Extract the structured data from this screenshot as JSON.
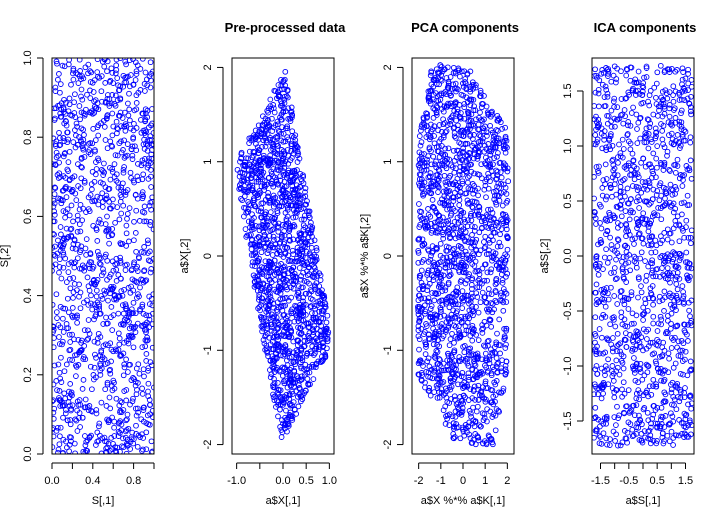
{
  "chart_data": [
    {
      "type": "scatter",
      "title": "",
      "xlabel": "S[,1]",
      "ylabel": "S[,2]",
      "xlim": [
        0,
        1
      ],
      "ylim": [
        0,
        1
      ],
      "xticks": [
        "0.0",
        "0.4",
        "0.8"
      ],
      "xtick_values": [
        0,
        0.2,
        0.4,
        0.6,
        0.8,
        1.0
      ],
      "xtick_labels_all": [
        "0.0",
        "",
        "0.4",
        "",
        "0.8",
        ""
      ],
      "yticks": [
        "0.0",
        "0.2",
        "0.4",
        "0.6",
        "0.8",
        "1.0"
      ],
      "ytick_values": [
        0,
        0.2,
        0.4,
        0.6,
        0.8,
        1.0
      ],
      "point_color": "#0000FF",
      "marker": "open-circle",
      "distribution": "uniform rectangle, x in [0,1], y in [0,1]",
      "region": [
        [
          0,
          0
        ],
        [
          1,
          0
        ],
        [
          1,
          1
        ],
        [
          0,
          1
        ]
      ],
      "n_points": 1200
    },
    {
      "type": "scatter",
      "title": "Pre-processed data",
      "xlabel": "a$X[,1]",
      "ylabel": "a$X[,2]",
      "xlim": [
        -1.1,
        1.1
      ],
      "ylim": [
        -2.1,
        2.1
      ],
      "xtick_values": [
        -1.0,
        -0.5,
        0.0,
        0.5,
        1.0
      ],
      "xtick_labels_all": [
        "-1.0",
        "",
        "0.0",
        "0.5",
        "1.0"
      ],
      "ytick_values": [
        -2,
        -1,
        0,
        1,
        2
      ],
      "ytick_labels_all": [
        "-2",
        "-1",
        "0",
        "1",
        "2"
      ],
      "point_color": "#0000FF",
      "marker": "open-circle",
      "region": [
        [
          0.05,
          1.98
        ],
        [
          -0.35,
          1.6
        ],
        [
          -1.0,
          1.0
        ],
        [
          -1.0,
          0.8
        ],
        [
          -0.05,
          -2.0
        ],
        [
          0.0,
          -1.95
        ],
        [
          1.0,
          -1.0
        ],
        [
          1.0,
          -0.7
        ]
      ],
      "n_points": 1400
    },
    {
      "type": "scatter",
      "title": "PCA components",
      "xlabel": "a$X %*% a$K[,1]",
      "ylabel": "a$X %*% a$K[,2]",
      "xlim": [
        -2.3,
        2.3
      ],
      "ylim": [
        -2.1,
        2.1
      ],
      "xtick_values": [
        -2,
        -1,
        0,
        1,
        2
      ],
      "xtick_labels_all": [
        "-2",
        "-1",
        "0",
        "1",
        "2"
      ],
      "ytick_values": [
        -2,
        -1,
        0,
        1,
        2
      ],
      "ytick_labels_all": [
        "-2",
        "-1",
        "0",
        "1",
        "2"
      ],
      "point_color": "#0000FF",
      "marker": "open-circle",
      "region": [
        [
          -1.4,
          2.05
        ],
        [
          0.3,
          2.0
        ],
        [
          2.05,
          1.3
        ],
        [
          2.0,
          -1.2
        ],
        [
          1.35,
          -2.0
        ],
        [
          -0.35,
          -2.0
        ],
        [
          -2.05,
          -1.25
        ],
        [
          -2.0,
          1.2
        ]
      ],
      "n_points": 1600
    },
    {
      "type": "scatter",
      "title": "ICA components",
      "xlabel": "a$S[,1]",
      "ylabel": "a$S[,2]",
      "xlim": [
        -1.8,
        1.8
      ],
      "ylim": [
        -1.8,
        1.8
      ],
      "xtick_values": [
        -1.5,
        -1.0,
        -0.5,
        0.0,
        0.5,
        1.0,
        1.5
      ],
      "xtick_labels_all": [
        "-1.5",
        "",
        "-0.5",
        "",
        "0.5",
        "",
        "1.5"
      ],
      "ytick_values": [
        -1.5,
        -1.0,
        -0.5,
        0.0,
        0.5,
        1.0,
        1.5
      ],
      "ytick_labels_all": [
        "-1.5",
        "-1.0",
        "-0.5",
        "0.0",
        "0.5",
        "1.0",
        "1.5"
      ],
      "point_color": "#0000FF",
      "marker": "open-circle",
      "region": [
        [
          -1.73,
          -1.73
        ],
        [
          1.73,
          -1.73
        ],
        [
          1.73,
          1.73
        ],
        [
          -1.73,
          1.73
        ]
      ],
      "n_points": 1200
    }
  ]
}
